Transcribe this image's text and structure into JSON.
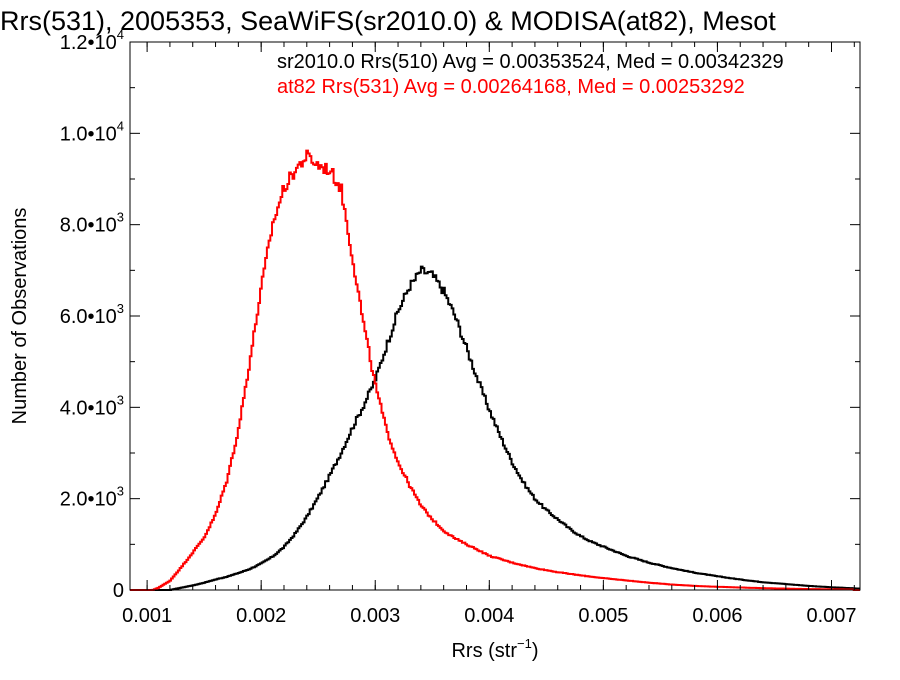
{
  "chart_data": {
    "type": "line",
    "title": "Rrs(531), 2005353, SeaWiFS(sr2010.0) & MODISA(at82), Mesot",
    "xlabel_main": "Rrs (str",
    "xlabel_sup": "−1",
    "xlabel_close": ")",
    "ylabel": "Number of Observations",
    "xlim": [
      0.00085,
      0.00725
    ],
    "ylim": [
      0,
      12000
    ],
    "x_ticks": [
      {
        "value": 0.001,
        "label": "0.001"
      },
      {
        "value": 0.002,
        "label": "0.002"
      },
      {
        "value": 0.003,
        "label": "0.003"
      },
      {
        "value": 0.004,
        "label": "0.004"
      },
      {
        "value": 0.005,
        "label": "0.005"
      },
      {
        "value": 0.006,
        "label": "0.006"
      },
      {
        "value": 0.007,
        "label": "0.007"
      }
    ],
    "y_ticks": [
      {
        "value": 0,
        "mant": "0",
        "exp": ""
      },
      {
        "value": 2000,
        "mant": "2.0•10",
        "exp": "3"
      },
      {
        "value": 4000,
        "mant": "4.0•10",
        "exp": "3"
      },
      {
        "value": 6000,
        "mant": "6.0•10",
        "exp": "3"
      },
      {
        "value": 8000,
        "mant": "8.0•10",
        "exp": "3"
      },
      {
        "value": 10000,
        "mant": "1.0•10",
        "exp": "4"
      },
      {
        "value": 12000,
        "mant": "1.2•10",
        "exp": "4"
      }
    ],
    "grid": false,
    "legend_position": "top-right",
    "series": [
      {
        "name": "sr2010.0 Rrs(510) Avg = 0.00353524, Med = 0.00342329",
        "color": "#000000",
        "x": [
          0.0012,
          0.0013,
          0.0014,
          0.0015,
          0.0016,
          0.0017,
          0.0018,
          0.0019,
          0.002,
          0.0021,
          0.0022,
          0.0023,
          0.0024,
          0.0025,
          0.0026,
          0.0027,
          0.0028,
          0.0029,
          0.003,
          0.0031,
          0.0032,
          0.0033,
          0.00335,
          0.0034,
          0.0035,
          0.0036,
          0.0037,
          0.0038,
          0.0039,
          0.004,
          0.0041,
          0.0042,
          0.0043,
          0.0044,
          0.0045,
          0.0046,
          0.0047,
          0.0048,
          0.0049,
          0.005,
          0.0052,
          0.0054,
          0.0056,
          0.0058,
          0.006,
          0.0062,
          0.0064,
          0.0066,
          0.0068,
          0.007,
          0.00725
        ],
        "y": [
          0,
          50,
          100,
          160,
          230,
          290,
          370,
          460,
          580,
          730,
          940,
          1240,
          1600,
          2030,
          2500,
          3000,
          3550,
          4050,
          4600,
          5350,
          6100,
          6650,
          6800,
          7000,
          6900,
          6550,
          6000,
          5300,
          4600,
          3950,
          3350,
          2800,
          2350,
          2000,
          1750,
          1550,
          1350,
          1180,
          1050,
          950,
          750,
          600,
          480,
          380,
          300,
          230,
          170,
          130,
          90,
          60,
          30
        ]
      },
      {
        "name": "at82 Rrs(531) Avg = 0.00264168, Med = 0.00253292",
        "color": "#ff0000",
        "x": [
          0.00105,
          0.0011,
          0.0012,
          0.0013,
          0.0014,
          0.0015,
          0.0016,
          0.0017,
          0.0018,
          0.0019,
          0.002,
          0.0021,
          0.0022,
          0.0023,
          0.0024,
          0.0025,
          0.0026,
          0.0027,
          0.0028,
          0.0029,
          0.003,
          0.0031,
          0.0032,
          0.0033,
          0.0034,
          0.0035,
          0.0036,
          0.0037,
          0.0038,
          0.0039,
          0.004,
          0.0042,
          0.0044,
          0.0046,
          0.0048,
          0.005,
          0.0052,
          0.0054,
          0.0056,
          0.0058,
          0.006,
          0.0064,
          0.0068,
          0.0072
        ],
        "y": [
          0,
          50,
          200,
          500,
          820,
          1150,
          1650,
          2400,
          3500,
          5000,
          6600,
          8000,
          8800,
          9200,
          9500,
          9300,
          9200,
          8800,
          7300,
          5800,
          4500,
          3500,
          2800,
          2300,
          1850,
          1550,
          1300,
          1130,
          1000,
          880,
          750,
          600,
          480,
          390,
          320,
          260,
          210,
          160,
          120,
          90,
          70,
          40,
          20,
          10
        ]
      }
    ]
  }
}
